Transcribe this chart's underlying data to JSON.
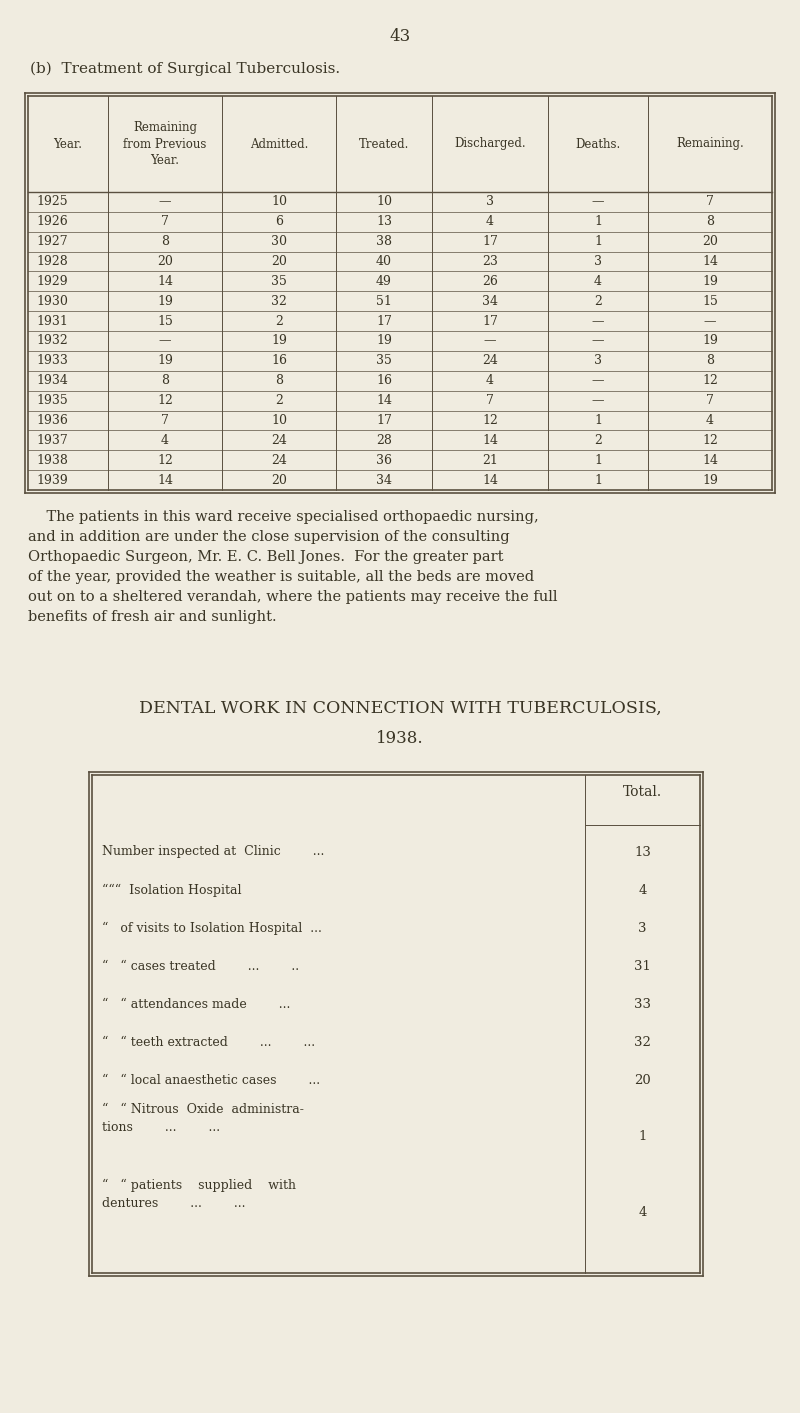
{
  "page_number": "43",
  "bg_color": "#f0ece0",
  "title_b": "(b)  Treatment of Surgical Tuberculosis.",
  "table1_headers": [
    "Year.",
    "Remaining\nfrom Previous\nYear.",
    "Admitted.",
    "Treated.",
    "Discharged.",
    "Deaths.",
    "Remaining."
  ],
  "table1_rows": [
    [
      "1925",
      "—",
      "10",
      "10",
      "3",
      "—",
      "7"
    ],
    [
      "1926",
      "7",
      "6",
      "13",
      "4",
      "1",
      "8"
    ],
    [
      "1927",
      "8",
      "30",
      "38",
      "17",
      "1",
      "20"
    ],
    [
      "1928",
      "20",
      "20",
      "40",
      "23",
      "3",
      "14"
    ],
    [
      "1929",
      "14",
      "35",
      "49",
      "26",
      "4",
      "19"
    ],
    [
      "1930",
      "19",
      "32",
      "51",
      "34",
      "2",
      "15"
    ],
    [
      "1931",
      "15",
      "2",
      "17",
      "17",
      "—",
      "—"
    ],
    [
      "1932",
      "—",
      "19",
      "19",
      "—",
      "—",
      "19"
    ],
    [
      "1933",
      "19",
      "16",
      "35",
      "24",
      "3",
      "8"
    ],
    [
      "1934",
      "8",
      "8",
      "16",
      "4",
      "—",
      "12"
    ],
    [
      "1935",
      "12",
      "2",
      "14",
      "7",
      "—",
      "7"
    ],
    [
      "1936",
      "7",
      "10",
      "17",
      "12",
      "1",
      "4"
    ],
    [
      "1937",
      "4",
      "24",
      "28",
      "14",
      "2",
      "12"
    ],
    [
      "1938",
      "12",
      "24",
      "36",
      "21",
      "1",
      "14"
    ],
    [
      "1939",
      "14",
      "20",
      "34",
      "14",
      "1",
      "19"
    ]
  ],
  "paragraph_lines": [
    "    The patients in this ward receive specialised orthopaedic nursing,",
    "and in addition are under the close supervision of the consulting",
    "Orthopaedic Surgeon, Mr. E. C. Bell Jones.  For the greater part",
    "of the year, provided the weather is suitable, all the beds are moved",
    "out on to a sheltered verandah, where the patients may receive the full",
    "benefits of fresh air and sunlight."
  ],
  "title2_line1": "DENTAL WORK IN CONNECTION WITH TUBERCULOSIS,",
  "title2_line2": "1938.",
  "table2_header": "Total.",
  "table2_rows": [
    [
      "Number inspected at  Clinic        ...",
      "13"
    ],
    [
      "“““  Isolation Hospital",
      "4"
    ],
    [
      "“   of visits to Isolation Hospital  ...",
      "3"
    ],
    [
      "“   “ cases treated        ...        ..",
      "31"
    ],
    [
      "“   “ attendances made        ...",
      "33"
    ],
    [
      "“   “ teeth extracted        ...        ...",
      "32"
    ],
    [
      "“   “ local anaesthetic cases        ...",
      "20"
    ],
    [
      "“   “ Nitrous  Oxide  administra-\n        tions        ...        ...",
      "1"
    ],
    [
      "“   “ patients    supplied    with\n        dentures        ...        ...",
      "4"
    ]
  ]
}
